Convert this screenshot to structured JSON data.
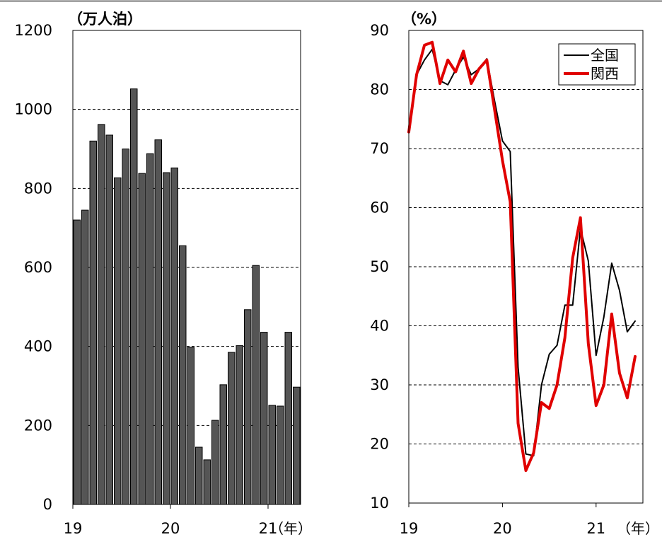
{
  "chart_data": [
    {
      "type": "bar",
      "unit_label": "（万人泊）",
      "xtick_labels": [
        "19",
        "20",
        "21"
      ],
      "year_label": "（年）",
      "ylim": [
        0,
        1200
      ],
      "yticks": [
        0,
        200,
        400,
        600,
        800,
        1000,
        1200
      ],
      "grid": "horizontal-dashed",
      "bar_color": "#555555",
      "categories": [
        "2019-01",
        "2019-02",
        "2019-03",
        "2019-04",
        "2019-05",
        "2019-06",
        "2019-07",
        "2019-08",
        "2019-09",
        "2019-10",
        "2019-11",
        "2019-12",
        "2020-01",
        "2020-02",
        "2020-03",
        "2020-04",
        "2020-05",
        "2020-06",
        "2020-07",
        "2020-08",
        "2020-09",
        "2020-10",
        "2020-11",
        "2020-12",
        "2021-01",
        "2021-02",
        "2021-03",
        "2021-04"
      ],
      "values": [
        720,
        745,
        920,
        962,
        935,
        827,
        900,
        1052,
        838,
        888,
        923,
        840,
        852,
        655,
        398,
        145,
        113,
        213,
        303,
        385,
        402,
        493,
        605,
        436,
        251,
        249,
        436,
        297
      ]
    },
    {
      "type": "line",
      "unit_label": "（%）",
      "xtick_labels": [
        "19",
        "20",
        "21"
      ],
      "year_label": "（年）",
      "ylim": [
        10,
        90
      ],
      "yticks": [
        10,
        20,
        30,
        40,
        50,
        60,
        70,
        80,
        90
      ],
      "grid": "horizontal-dashed",
      "legend_position": "top-right",
      "x": [
        "2019-01",
        "2019-02",
        "2019-03",
        "2019-04",
        "2019-05",
        "2019-06",
        "2019-07",
        "2019-08",
        "2019-09",
        "2019-10",
        "2019-11",
        "2019-12",
        "2020-01",
        "2020-02",
        "2020-03",
        "2020-04",
        "2020-05",
        "2020-06",
        "2020-07",
        "2020-08",
        "2020-09",
        "2020-10",
        "2020-11",
        "2020-12",
        "2021-01",
        "2021-02",
        "2021-03",
        "2021-04",
        "2021-05",
        "2021-06"
      ],
      "series": [
        {
          "name": "全国",
          "color": "#000000",
          "values": [
            72.8,
            82.5,
            85,
            86.8,
            81.5,
            80.8,
            83.3,
            85.5,
            82.5,
            83.5,
            85.2,
            78,
            71.3,
            69.5,
            33,
            18.3,
            18,
            30,
            35.2,
            36.7,
            43.5,
            43.5,
            56.5,
            51,
            35,
            41.5,
            50.6,
            46,
            39,
            40.8
          ]
        },
        {
          "name": "関西",
          "color": "#e00000",
          "values": [
            72.8,
            82.5,
            87.5,
            88,
            81,
            85,
            83,
            86.5,
            81,
            83.5,
            85,
            76.5,
            68,
            61,
            23.5,
            15.5,
            18.5,
            27,
            26,
            30,
            38,
            51.5,
            58.3,
            37,
            26.5,
            30,
            42,
            32,
            27.8,
            34.8
          ]
        }
      ]
    }
  ]
}
